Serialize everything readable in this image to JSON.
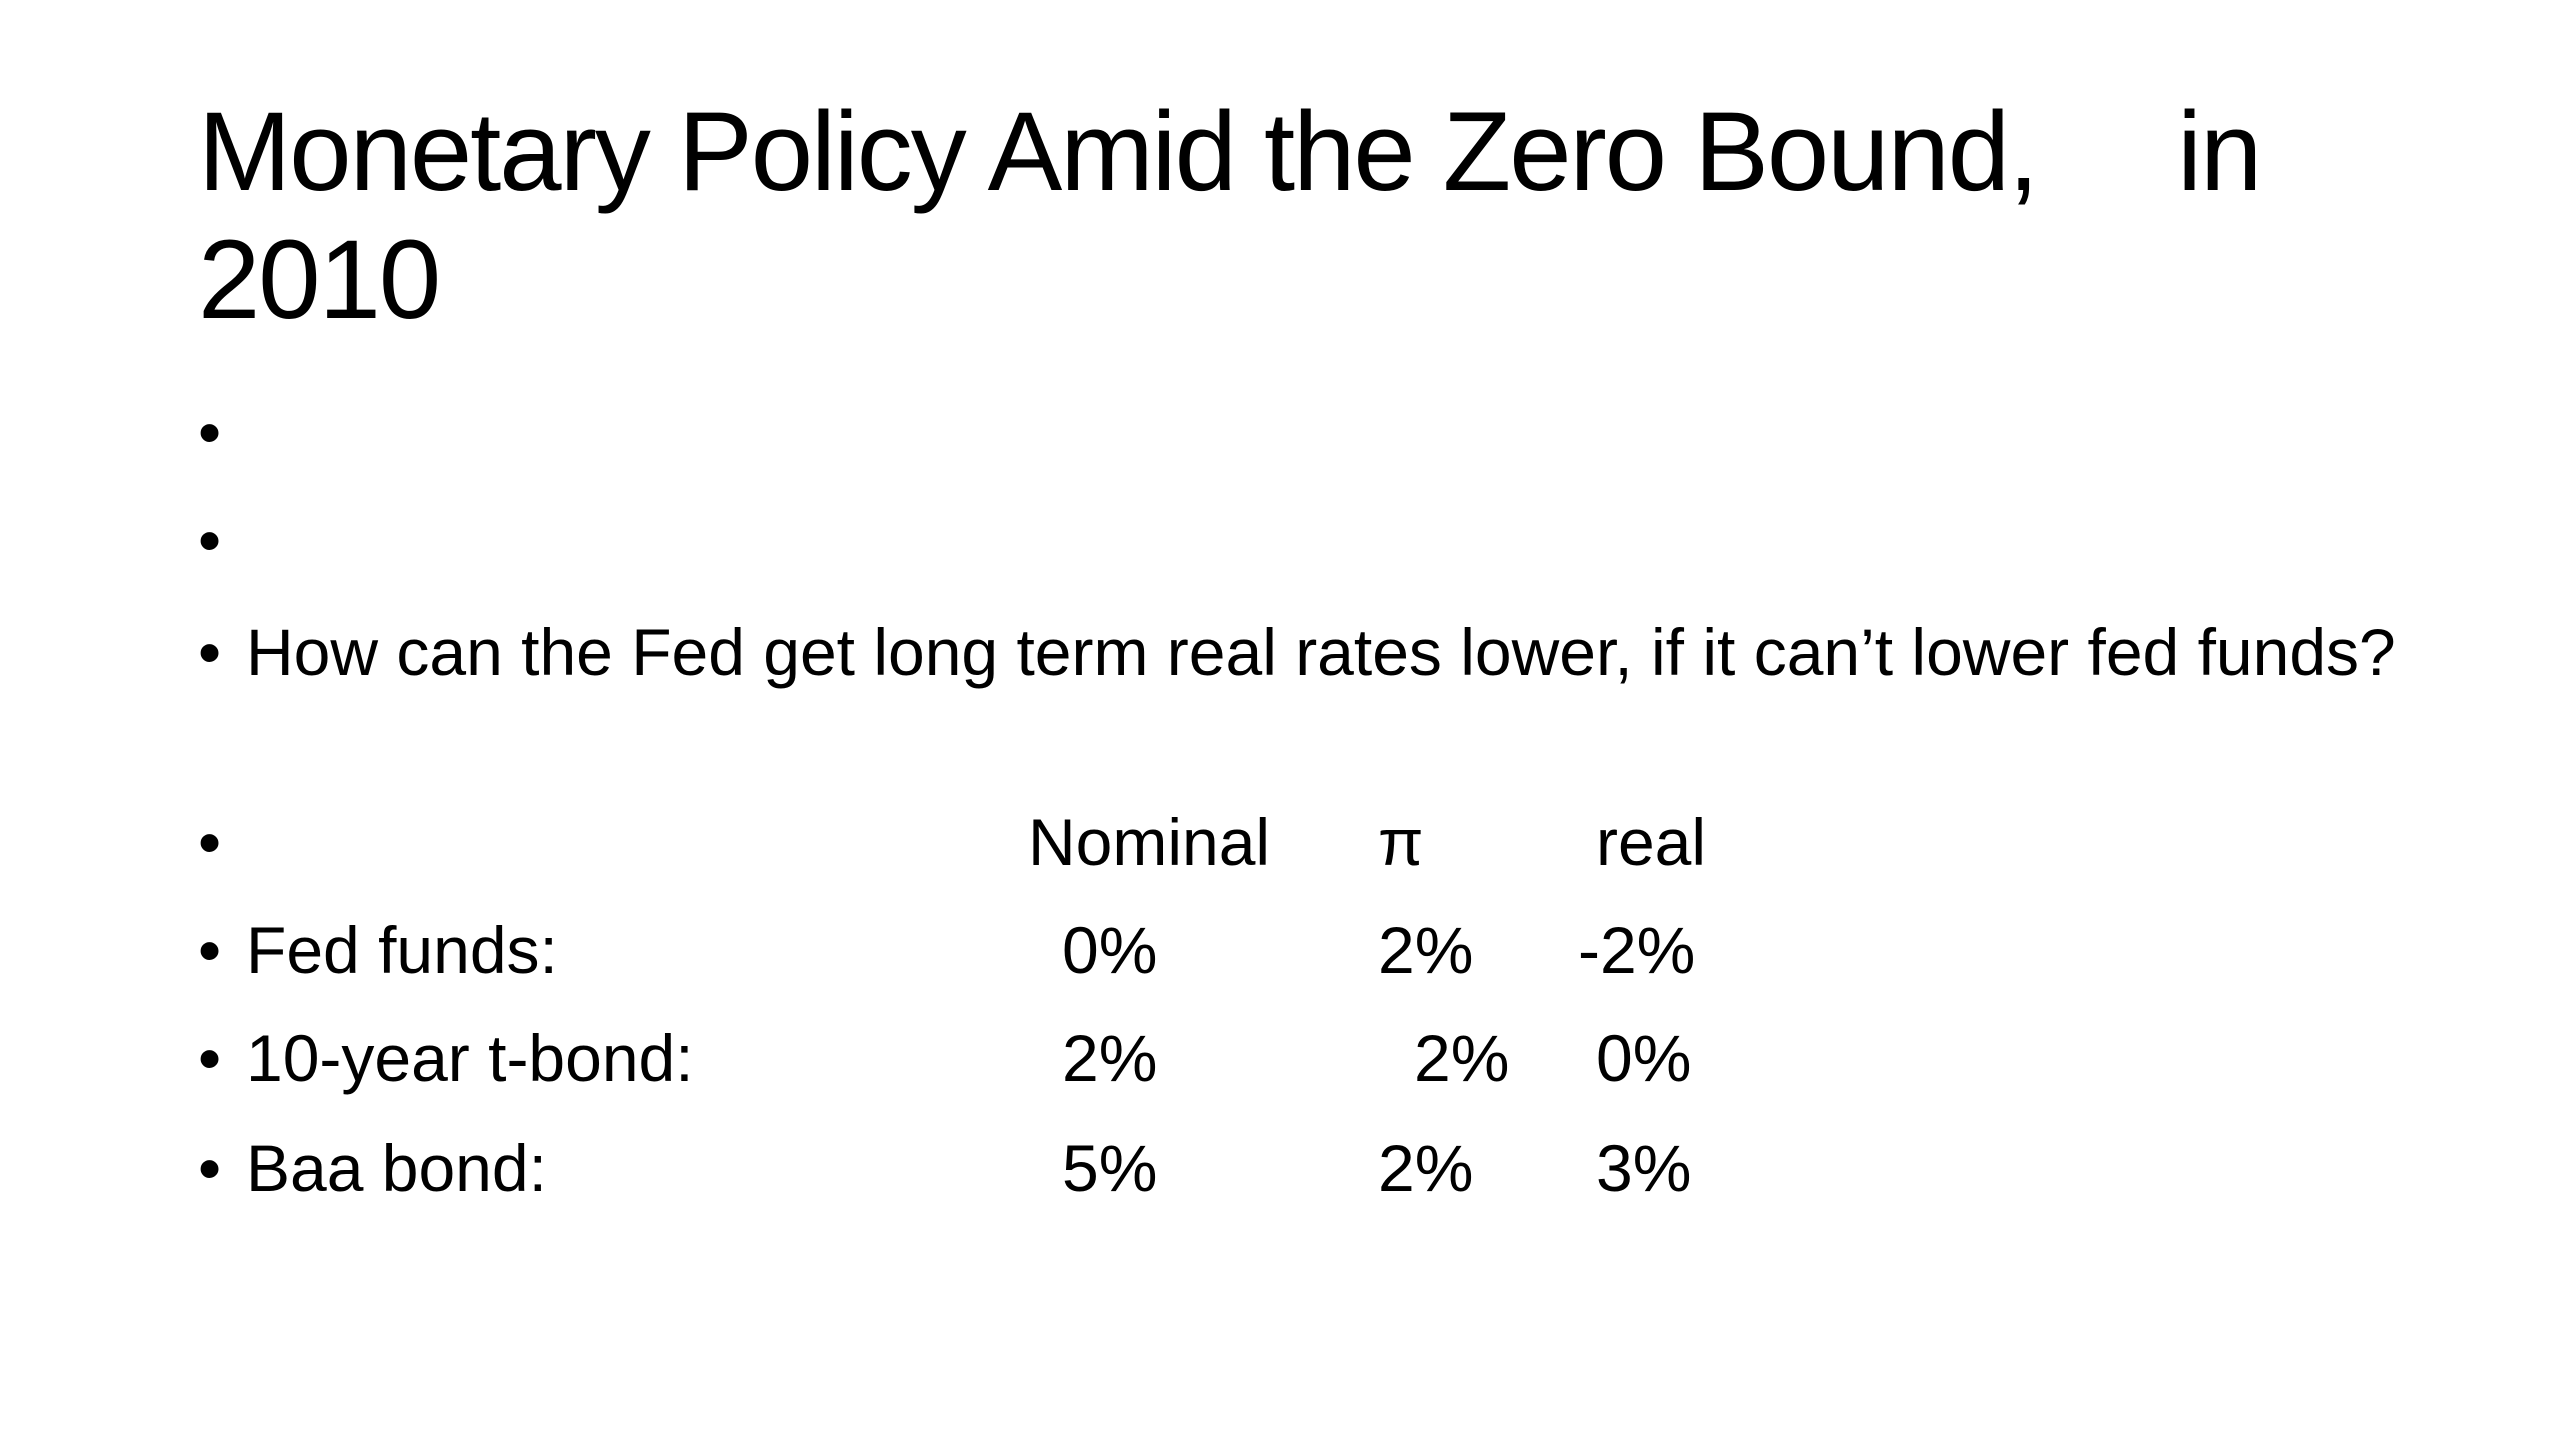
{
  "slide": {
    "title_part1": "Monetary Policy Amid the Zero Bound,",
    "title_part2": "in",
    "title_line2": "2010",
    "bullet_char": "•",
    "question": "How can the Fed get long term real rates lower, if it can’t lower fed funds?",
    "table": {
      "headers": [
        "Nominal",
        "π",
        "real"
      ],
      "rows": [
        {
          "label": "Fed funds:",
          "nominal": "0%",
          "inflation": "2%",
          "real": "-2%"
        },
        {
          "label": "10-year t-bond:",
          "nominal": "2%",
          "inflation": "2%",
          "real": "0%"
        },
        {
          "label": "Baa bond:",
          "nominal": "5%",
          "inflation": "2%",
          "real": "3%"
        }
      ]
    }
  }
}
